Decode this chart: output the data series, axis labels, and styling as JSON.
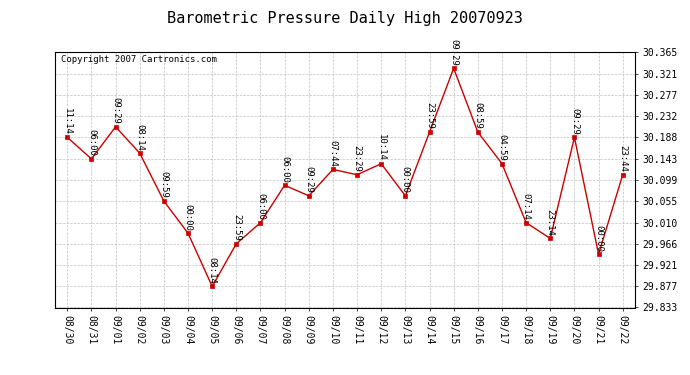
{
  "title": "Barometric Pressure Daily High 20070923",
  "copyright": "Copyright 2007 Cartronics.com",
  "x_labels": [
    "08/30",
    "08/31",
    "09/01",
    "09/02",
    "09/03",
    "09/04",
    "09/05",
    "09/06",
    "09/07",
    "09/08",
    "09/09",
    "09/10",
    "09/11",
    "09/12",
    "09/13",
    "09/14",
    "09/15",
    "09/16",
    "09/17",
    "09/18",
    "09/19",
    "09/20",
    "09/21",
    "09/22"
  ],
  "y_values": [
    30.188,
    30.143,
    30.21,
    30.155,
    30.055,
    29.988,
    29.877,
    29.966,
    30.01,
    30.088,
    30.066,
    30.121,
    30.11,
    30.133,
    30.066,
    30.199,
    30.332,
    30.199,
    30.133,
    30.01,
    29.977,
    30.188,
    29.944,
    30.11
  ],
  "point_labels": [
    "11:14",
    "06:00",
    "09:29",
    "08:14",
    "09:59",
    "00:00",
    "08:14",
    "23:59",
    "06:00",
    "06:00",
    "09:29",
    "07:44",
    "23:29",
    "10:14",
    "00:00",
    "23:59",
    "09:29",
    "08:59",
    "04:59",
    "07:14",
    "23:14",
    "09:29",
    "00:00",
    "23:44"
  ],
  "y_min": 29.833,
  "y_max": 30.365,
  "y_ticks": [
    29.833,
    29.877,
    29.921,
    29.966,
    30.01,
    30.055,
    30.099,
    30.143,
    30.188,
    30.232,
    30.277,
    30.321,
    30.365
  ],
  "line_color": "#cc0000",
  "marker_color": "#cc0000",
  "bg_color": "#ffffff",
  "grid_color": "#bbbbbb",
  "text_color": "#000000",
  "title_fontsize": 11,
  "label_fontsize": 6.5,
  "tick_fontsize": 7,
  "copyright_fontsize": 6.5
}
